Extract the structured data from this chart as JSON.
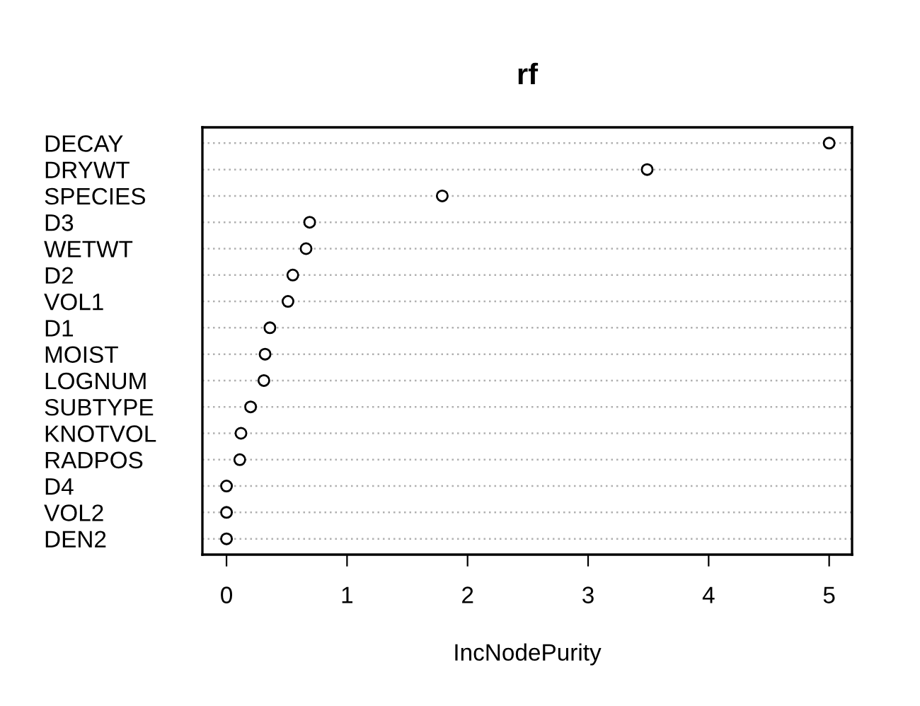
{
  "chart_data": {
    "type": "scatter",
    "orientation": "horizontal",
    "title": "rf",
    "xlabel": "IncNodePurity",
    "categories": [
      "DECAY",
      "DRYWT",
      "SPECIES",
      "D3",
      "WETWT",
      "D2",
      "VOL1",
      "D1",
      "MOIST",
      "LOGNUM",
      "SUBTYPE",
      "KNOTVOL",
      "RADPOS",
      "D4",
      "VOL2",
      "DEN2"
    ],
    "values": [
      5.0,
      3.49,
      1.79,
      0.69,
      0.66,
      0.55,
      0.51,
      0.36,
      0.32,
      0.31,
      0.2,
      0.12,
      0.11,
      0.0,
      0.0,
      0.0
    ],
    "color": "#000000",
    "marker": "circle",
    "grid": "y",
    "xlim": [
      -0.2,
      5.19
    ],
    "xticks": [
      0,
      1,
      2,
      3,
      4,
      5
    ]
  }
}
